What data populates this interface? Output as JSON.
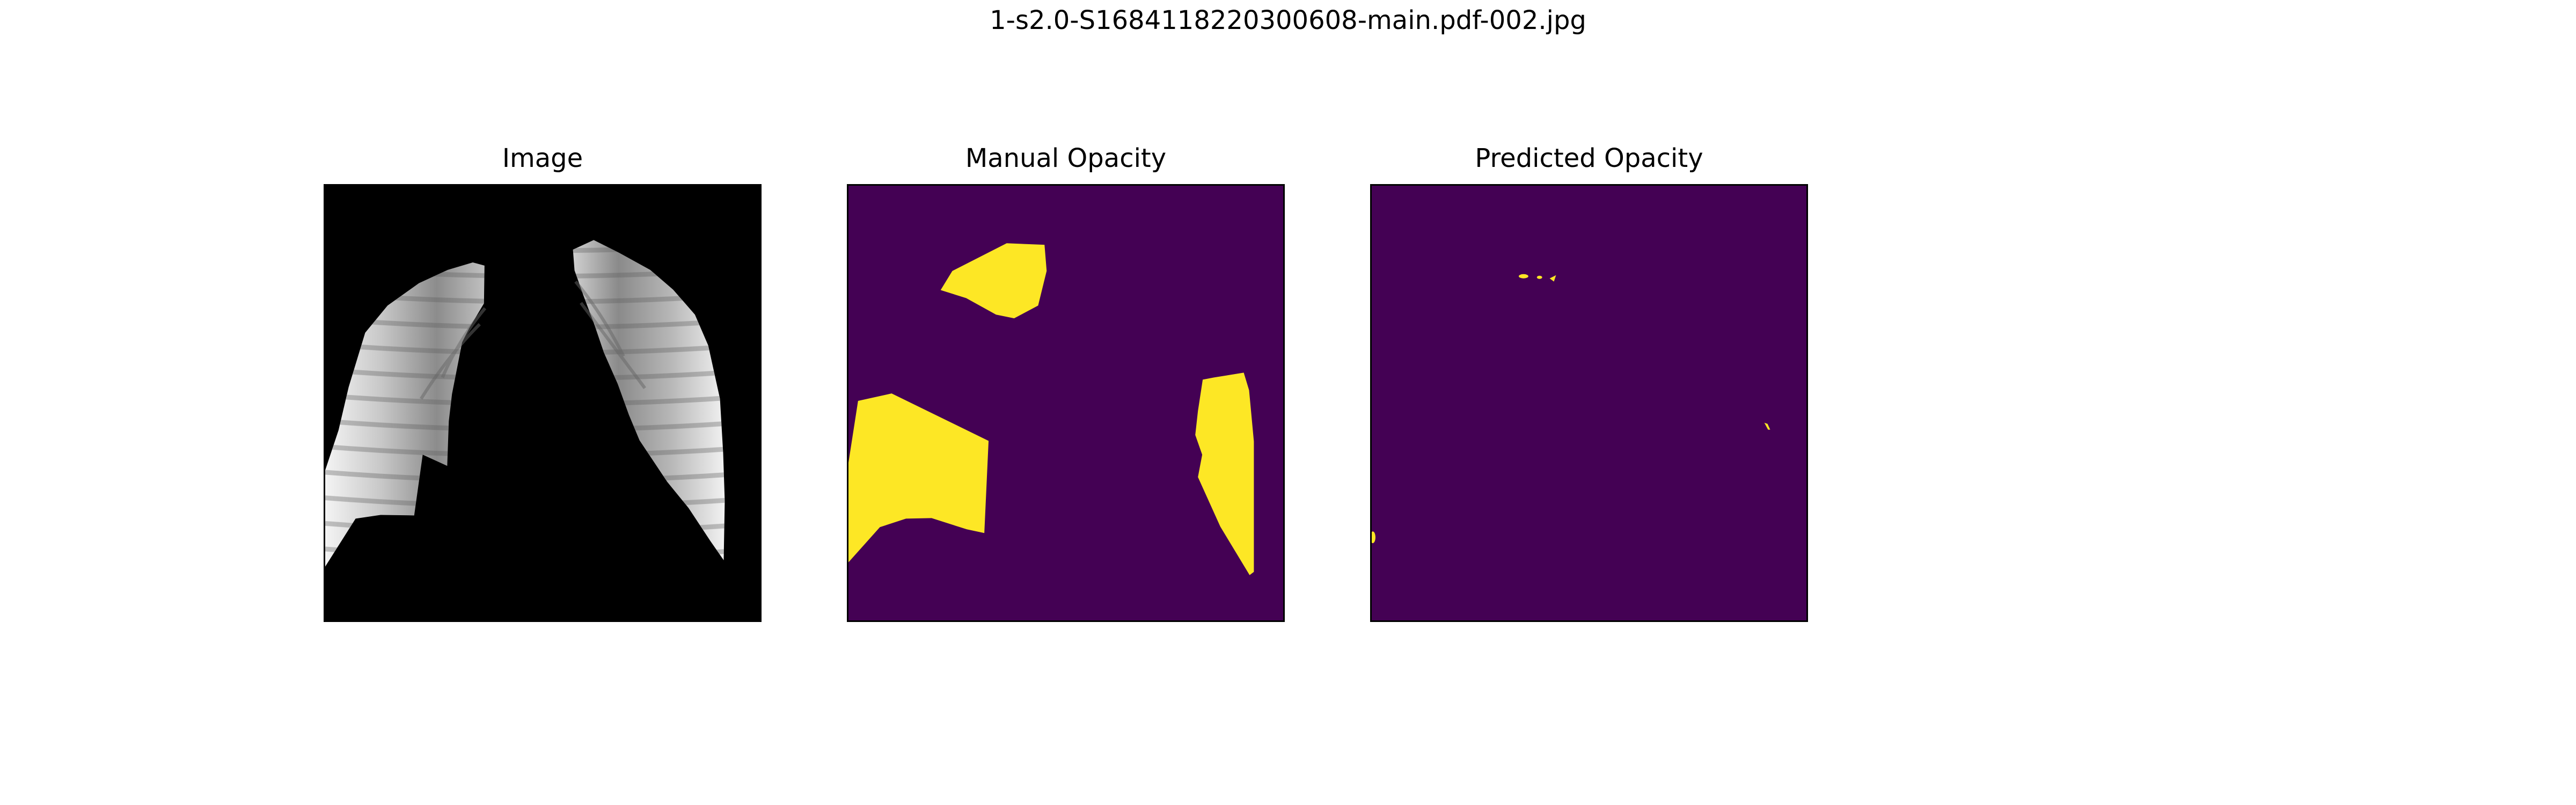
{
  "figure": {
    "title": "1-s2.0-S1684118220300608-main.pdf-002.jpg"
  },
  "panels": [
    {
      "title": "Image"
    },
    {
      "title": "Manual Opacity"
    },
    {
      "title": "Predicted Opacity"
    }
  ],
  "colors": {
    "background": "#ffffff",
    "xray_background": "#000000",
    "mask_background": "#440154",
    "mask_foreground": "#fde725"
  }
}
